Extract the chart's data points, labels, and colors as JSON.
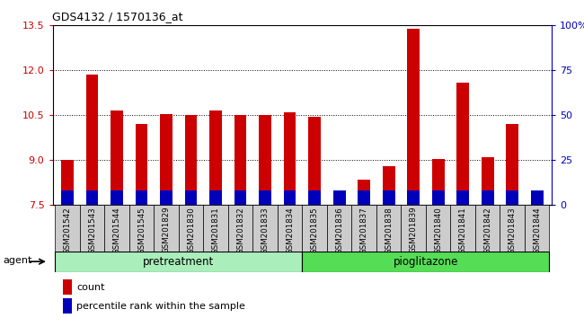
{
  "title": "GDS4132 / 1570136_at",
  "samples": [
    "GSM201542",
    "GSM201543",
    "GSM201544",
    "GSM201545",
    "GSM201829",
    "GSM201830",
    "GSM201831",
    "GSM201832",
    "GSM201833",
    "GSM201834",
    "GSM201835",
    "GSM201836",
    "GSM201837",
    "GSM201838",
    "GSM201839",
    "GSM201840",
    "GSM201841",
    "GSM201842",
    "GSM201843",
    "GSM201844"
  ],
  "count_values": [
    9.0,
    11.85,
    10.65,
    10.2,
    10.55,
    10.5,
    10.65,
    10.5,
    10.5,
    10.6,
    10.45,
    7.75,
    8.35,
    8.8,
    13.4,
    9.05,
    11.6,
    9.1,
    10.2,
    7.75
  ],
  "percentile_values": [
    5,
    8,
    5,
    5,
    5,
    5,
    6,
    5,
    5,
    5,
    5,
    5,
    7,
    7,
    5,
    5,
    8,
    5,
    5,
    5
  ],
  "ymin": 7.5,
  "ymax": 13.5,
  "yticks": [
    7.5,
    9.0,
    10.5,
    12.0,
    13.5
  ],
  "yright_ticks": [
    0,
    25,
    50,
    75,
    100
  ],
  "yright_labels": [
    "0",
    "25",
    "50",
    "75",
    "100%"
  ],
  "bar_color_red": "#cc0000",
  "bar_color_blue": "#0000bb",
  "pretreatment_color": "#aaeebb",
  "pioglitazone_color": "#55dd55",
  "tick_color_red": "#cc0000",
  "tick_color_blue": "#0000bb",
  "bg_plot": "#ffffff",
  "bg_xticklabels": "#cccccc",
  "pretreatment_indices": [
    0,
    1,
    2,
    3,
    4,
    5,
    6,
    7,
    8,
    9
  ],
  "pioglitazone_indices": [
    10,
    11,
    12,
    13,
    14,
    15,
    16,
    17,
    18,
    19
  ],
  "group_labels": [
    "pretreatment",
    "pioglitazone"
  ],
  "agent_label": "agent",
  "legend_count": "count",
  "legend_percentile": "percentile rank within the sample",
  "pct_bar_height": 0.08
}
